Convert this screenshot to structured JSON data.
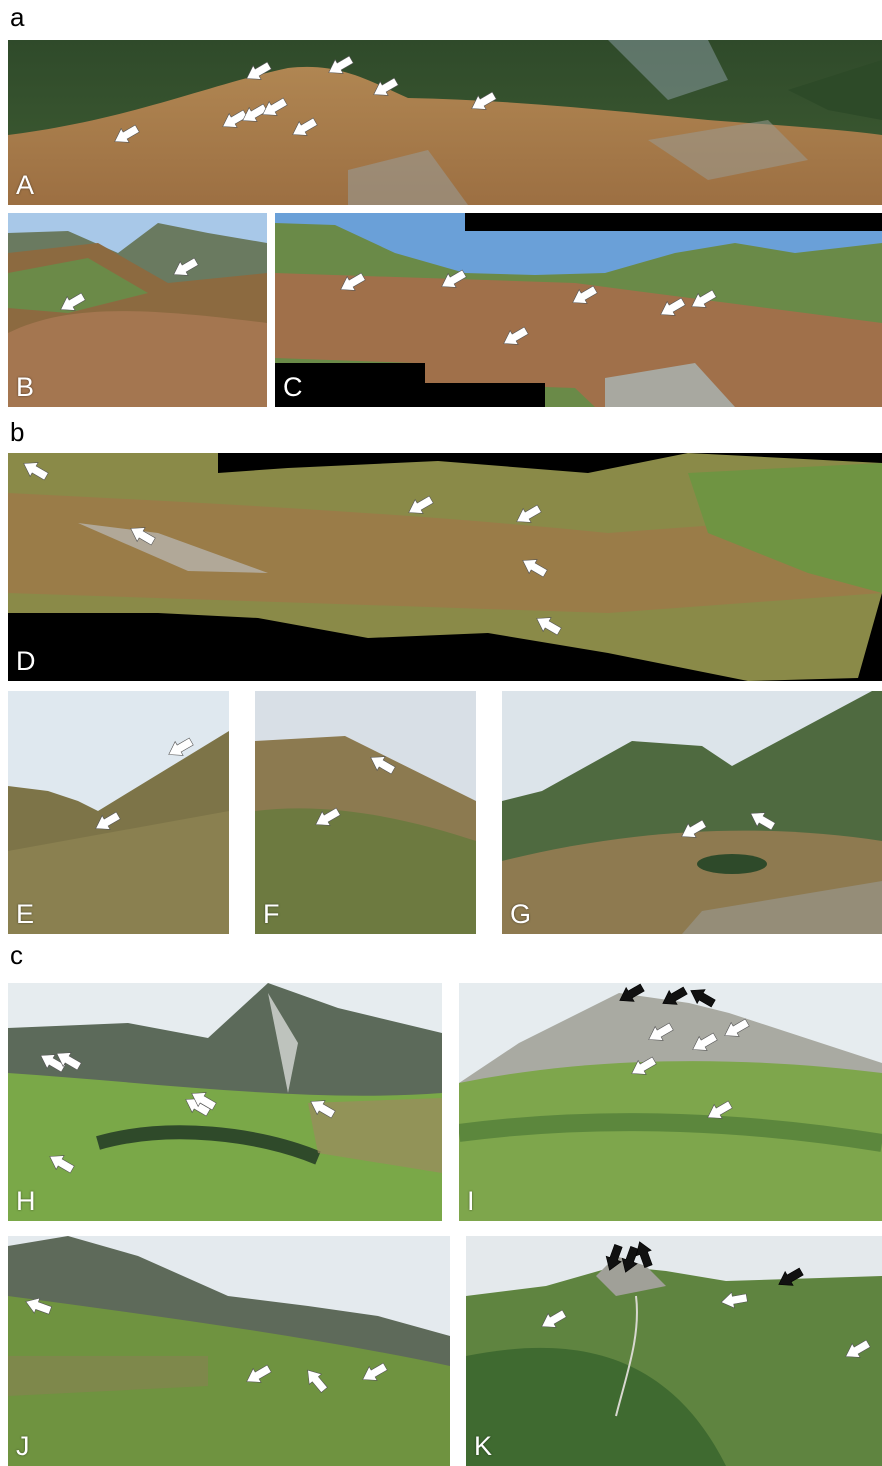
{
  "sections": [
    {
      "label": "a"
    },
    {
      "label": "b"
    },
    {
      "label": "c"
    }
  ],
  "panels": [
    {
      "id": "A",
      "label": "A",
      "arrow_color": "#ffffff"
    },
    {
      "id": "B",
      "label": "B",
      "arrow_color": "#ffffff"
    },
    {
      "id": "C",
      "label": "C",
      "arrow_color": "#ffffff"
    },
    {
      "id": "D",
      "label": "D",
      "arrow_color": "#ffffff"
    },
    {
      "id": "E",
      "label": "E",
      "arrow_color": "#ffffff"
    },
    {
      "id": "F",
      "label": "F",
      "arrow_color": "#ffffff"
    },
    {
      "id": "G",
      "label": "G",
      "arrow_color": "#ffffff"
    },
    {
      "id": "H",
      "label": "H",
      "arrow_color": "#ffffff"
    },
    {
      "id": "I",
      "label": "I",
      "arrow_color": "#ffffff"
    },
    {
      "id": "J",
      "label": "J",
      "arrow_color": "#ffffff"
    },
    {
      "id": "K",
      "label": "K",
      "arrow_color": "#ffffff"
    }
  ],
  "colors": {
    "autumn_grass": "#a9784a",
    "green_grass": "#7fa94a",
    "dark_forest": "#3c5a30",
    "sky": "#cfe0ee",
    "rock": "#b8b8b0",
    "black_arrow": "#111111",
    "white_arrow": "#ffffff"
  }
}
